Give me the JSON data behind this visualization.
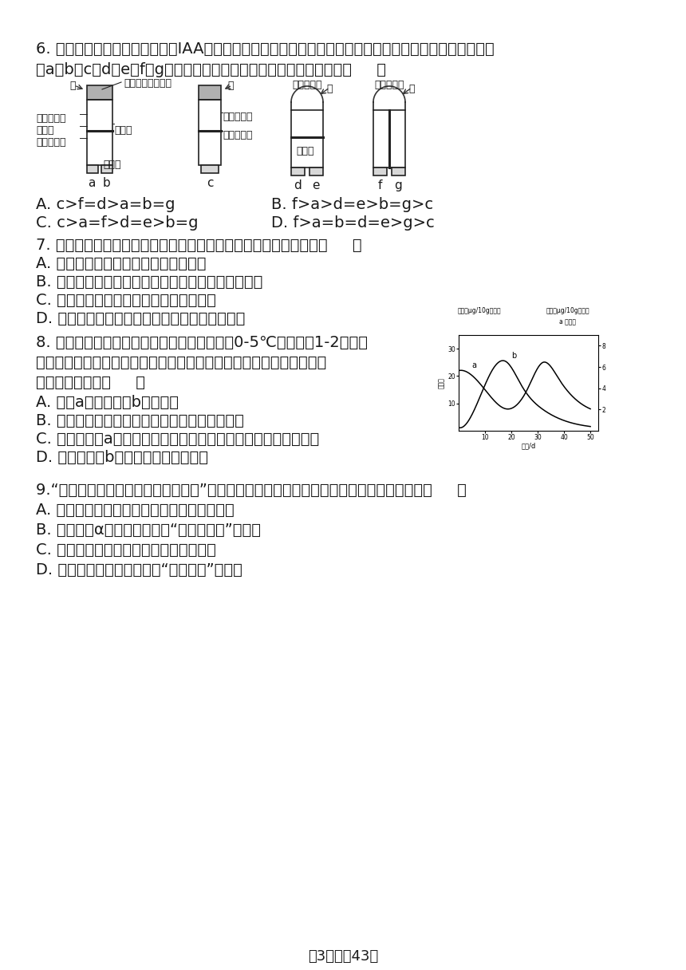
{
  "bg_color": "#ffffff",
  "text_color": "#1a1a1a",
  "q6_line1": "6. 假设如图图中两个含生长素（IAA）的琦脂块和两个胚节鞘尖端所产生的生长素含量相同，则一段时间后",
  "q6_line2": "对a、b、c、d、e、f、g空白琦脂块中的含生长素量的分析正确的是（     ）",
  "q6_optA": "A. c>f=d>a=b=g",
  "q6_optB": "B. f>a>d=e>b=g>c",
  "q6_optC": "C. c>a=f>d=e>b=g",
  "q6_optD": "D. f>a=b=d=e>g>c",
  "q7_stem": "7. 小麦需要日照长度达到一定值才能开花，下面相关说法错误的是（     ）",
  "q7_optA": "A. 小麦细胞内的光敏色素能感知光信号",
  "q7_optB": "B. 光信号在细胞内通过信息传递系统被传导到细胞核",
  "q7_optC": "C. 和小麦类似的植物通常在春末夏初开花",
  "q7_optD": "D. 长日照能提高细胞核内与开花有关的基因数量",
  "q8_line1": "8. 将休眠状态的某植物种子与湿沙混合后放在0-5℃的低温下1-2个月，",
  "q8_line2": "可使种子提前萌发。处理过程中两种激素含量的变化情况如图所示。有",
  "q8_line3": "关说法错误的是（     ）",
  "q8_optA": "A. 图中a是脱落酸，b是赤霞素",
  "q8_optB": "B. 种子的休眠、萌发与植物激素有着密切的关系",
  "q8_optC": "C. 较高浓度的a与较高浓度的生长素喷洒果实可以达到相同的效果",
  "q8_optD": "D. 较高浓度的b喷洒水稺可以提高产量",
  "q9_stem": "9.“引来繁华缀满枝，瓜熟萨落也有时”是多种植物激素相互作用的结果。下列分析错误的是（     ）",
  "q9_optA": "A. 高浓度的生长素促进细胞伸长，使植株长高",
  "q9_optB": "B. 适当喷洒α一萸乙酸可延长“繁华缀满枝”的时间",
  "q9_optC": "C. 适时打顶去心，可使植株多开花多结果",
  "q9_optD": "D. 乙烯和脱落酸可协同调节“瓜熟萨落”的过程",
  "footer": "第3页，全43页"
}
